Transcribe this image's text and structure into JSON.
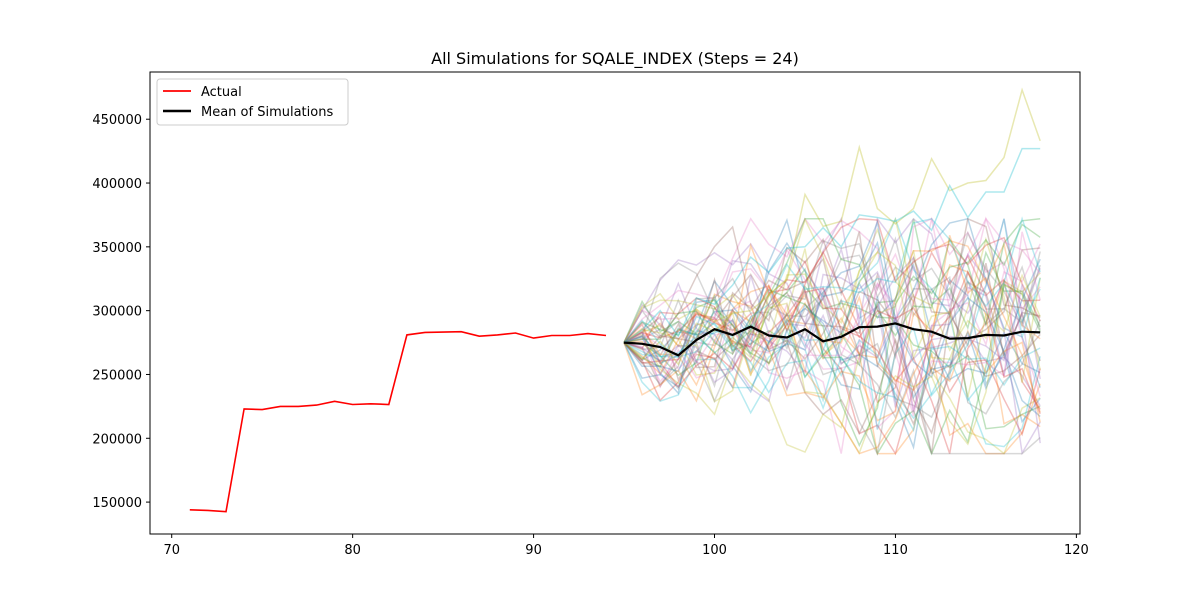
{
  "chart_data": {
    "type": "line",
    "title": "All Simulations for SQALE_INDEX (Steps = 24)",
    "xlabel": "",
    "ylabel": "",
    "xlim": [
      68.8,
      120.2
    ],
    "ylim": [
      125000,
      487000
    ],
    "x_ticks": [
      70,
      80,
      90,
      100,
      110,
      120
    ],
    "y_ticks": [
      150000,
      200000,
      250000,
      300000,
      350000,
      400000,
      450000
    ],
    "x_tick_labels": [
      "70",
      "80",
      "90",
      "100",
      "110",
      "120"
    ],
    "y_tick_labels": [
      "150000",
      "200000",
      "250000",
      "300000",
      "350000",
      "400000",
      "450000"
    ],
    "legend": {
      "position": "top-left",
      "entries": [
        {
          "label": "Actual",
          "color": "#ff0000"
        },
        {
          "label": "Mean of Simulations",
          "color": "#000000"
        }
      ]
    },
    "actual": {
      "name": "Actual",
      "color": "#ff0000",
      "x": [
        71,
        72,
        73,
        74,
        75,
        76,
        77,
        78,
        79,
        80,
        81,
        82,
        83,
        84,
        85,
        86,
        87,
        88,
        89,
        90,
        91,
        92,
        93,
        94
      ],
      "values": [
        144000,
        143500,
        142500,
        223000,
        222500,
        225000,
        225000,
        226000,
        229000,
        226500,
        227000,
        226500,
        281000,
        283000,
        283200,
        283500,
        280000,
        281000,
        282500,
        278500,
        280500,
        280500,
        282000,
        280500
      ]
    },
    "mean": {
      "name": "Mean of Simulations",
      "color": "#000000",
      "x": [
        95,
        96,
        97,
        98,
        99,
        100,
        101,
        102,
        103,
        104,
        105,
        106,
        107,
        108,
        109,
        110,
        111,
        112,
        113,
        114,
        115,
        116,
        117,
        118
      ],
      "values": [
        275000,
        274000,
        271500,
        265000,
        277000,
        285500,
        281000,
        287500,
        280500,
        279000,
        285500,
        276000,
        279500,
        287000,
        287500,
        290000,
        285500,
        283500,
        278000,
        278500,
        281000,
        280500,
        283500,
        283000
      ]
    },
    "simulations": {
      "count": 50,
      "start_x": 95,
      "start_value": 275000,
      "steps": 24,
      "alpha": 0.3,
      "colors": [
        "#1f77b4",
        "#ff7f0e",
        "#2ca02c",
        "#d62728",
        "#9467bd",
        "#8c564b",
        "#e377c2",
        "#7f7f7f",
        "#bcbd22",
        "#17becf"
      ],
      "highlight_series": [
        {
          "color": "#bcbd22",
          "values": [
            275000,
            262000,
            276000,
            258000,
            290000,
            284000,
            298000,
            300000,
            312000,
            325000,
            391000,
            366000,
            370000,
            428000,
            380000,
            368000,
            380000,
            419000,
            394000,
            400000,
            402000,
            420000,
            473000,
            433000
          ]
        },
        {
          "color": "#17becf",
          "values": [
            275000,
            285000,
            300000,
            280000,
            310000,
            305000,
            320000,
            342000,
            330000,
            349000,
            350000,
            365000,
            350000,
            375000,
            373000,
            370000,
            378000,
            363000,
            398000,
            373000,
            393000,
            393000,
            427000,
            427000
          ]
        }
      ]
    }
  }
}
